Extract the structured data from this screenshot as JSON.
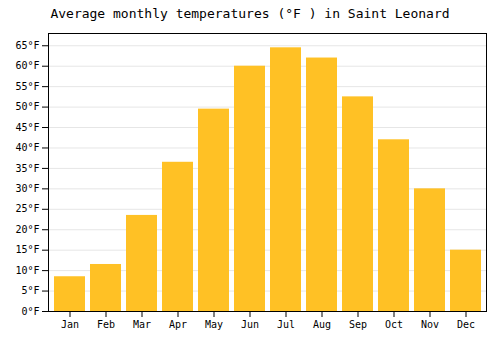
{
  "chart_data": {
    "type": "bar",
    "title": "Average monthly temperatures (°F ) in Saint Leonard",
    "categories": [
      "Jan",
      "Feb",
      "Mar",
      "Apr",
      "May",
      "Jun",
      "Jul",
      "Aug",
      "Sep",
      "Oct",
      "Nov",
      "Dec"
    ],
    "values": [
      8.5,
      11.5,
      23.5,
      36.5,
      49.5,
      60,
      64.5,
      62,
      52.5,
      42,
      30,
      15
    ],
    "color": "#FFC125",
    "ylim": [
      0,
      68
    ],
    "yticks": [
      {
        "value": 0,
        "label": "0°F"
      },
      {
        "value": 5,
        "label": "5°F"
      },
      {
        "value": 10,
        "label": "10°F"
      },
      {
        "value": 15,
        "label": "15°F"
      },
      {
        "value": 20,
        "label": "20°F"
      },
      {
        "value": 25,
        "label": "25°F"
      },
      {
        "value": 30,
        "label": "30°F"
      },
      {
        "value": 35,
        "label": "35°F"
      },
      {
        "value": 40,
        "label": "40°F"
      },
      {
        "value": 45,
        "label": "45°F"
      },
      {
        "value": 50,
        "label": "50°F"
      },
      {
        "value": 55,
        "label": "55°F"
      },
      {
        "value": 60,
        "label": "60°F"
      },
      {
        "value": 65,
        "label": "65°F"
      }
    ],
    "grid": true
  }
}
